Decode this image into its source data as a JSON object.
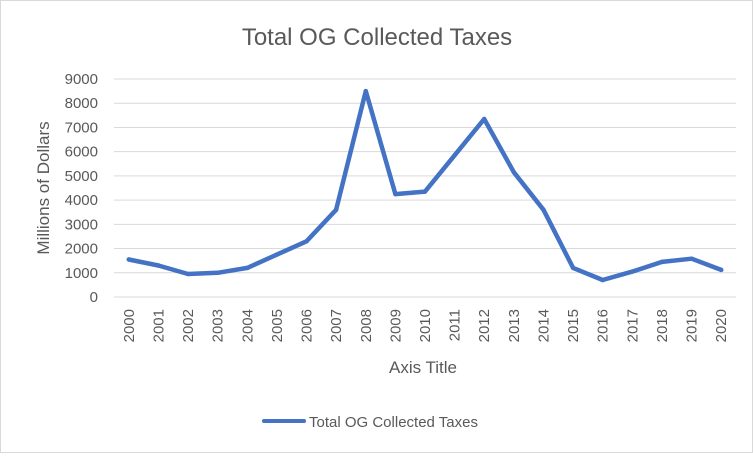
{
  "chart_data": {
    "type": "line",
    "title": "Total OG Collected Taxes",
    "xlabel": "Axis Title",
    "ylabel": "Millions of Dollars",
    "ylim": [
      0,
      9000
    ],
    "yticks": [
      0,
      1000,
      2000,
      3000,
      4000,
      5000,
      6000,
      7000,
      8000,
      9000
    ],
    "grid": true,
    "legend_position": "bottom",
    "categories": [
      "2000",
      "2001",
      "2002",
      "2003",
      "2004",
      "2005",
      "2006",
      "2007",
      "2008",
      "2009",
      "2010",
      "2011",
      "2012",
      "2013",
      "2014",
      "2015",
      "2016",
      "2017",
      "2018",
      "2019",
      "2020"
    ],
    "series": [
      {
        "name": "Total OG Collected Taxes",
        "color": "#4472c4",
        "values": [
          1550,
          1300,
          950,
          1000,
          1200,
          1750,
          2300,
          3600,
          8500,
          4250,
          4350,
          5850,
          7350,
          5150,
          3600,
          1200,
          700,
          1050,
          1450,
          1580,
          1120
        ]
      }
    ]
  }
}
